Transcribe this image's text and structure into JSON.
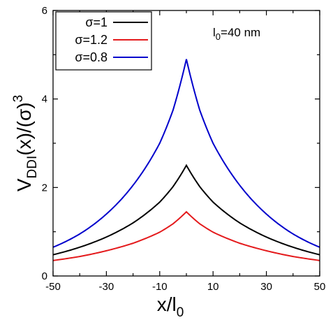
{
  "chart_data": {
    "type": "line",
    "xlabel": {
      "main": "x/l",
      "sub": "0"
    },
    "ylabel": {
      "pre": "V",
      "sub": "DDI",
      "post": "(x)/(σ)",
      "sup": "3"
    },
    "xlim": [
      -50,
      50
    ],
    "ylim": [
      0,
      6
    ],
    "xticks": [
      "-50",
      "-30",
      "-10",
      "10",
      "30",
      "50"
    ],
    "xtick_values": [
      -50,
      -30,
      -10,
      10,
      30,
      50
    ],
    "yticks": [
      "0",
      "2",
      "4",
      "6"
    ],
    "ytick_values": [
      0,
      2,
      4,
      6
    ],
    "grid": false,
    "legend_position": "top-left",
    "annotation": {
      "pre": "l",
      "sub": "0",
      "post": "=40 nm"
    },
    "x": [
      -50,
      -40,
      -30,
      -20,
      -10,
      -5,
      0,
      5,
      10,
      20,
      30,
      40,
      50
    ],
    "series": [
      {
        "name": "σ=1",
        "color": "#000000",
        "values": [
          0.48,
          0.65,
          0.88,
          1.2,
          1.67,
          2.02,
          2.5,
          2.02,
          1.67,
          1.2,
          0.88,
          0.65,
          0.48
        ]
      },
      {
        "name": "σ=1.2",
        "color": "#e41a1c",
        "values": [
          0.35,
          0.44,
          0.57,
          0.74,
          0.99,
          1.18,
          1.45,
          1.18,
          0.99,
          0.74,
          0.57,
          0.44,
          0.35
        ]
      },
      {
        "name": "σ=0.8",
        "color": "#0000cc",
        "values": [
          0.65,
          0.95,
          1.4,
          2.05,
          3.0,
          3.75,
          4.9,
          3.75,
          3.0,
          2.05,
          1.4,
          0.95,
          0.65
        ]
      }
    ]
  }
}
